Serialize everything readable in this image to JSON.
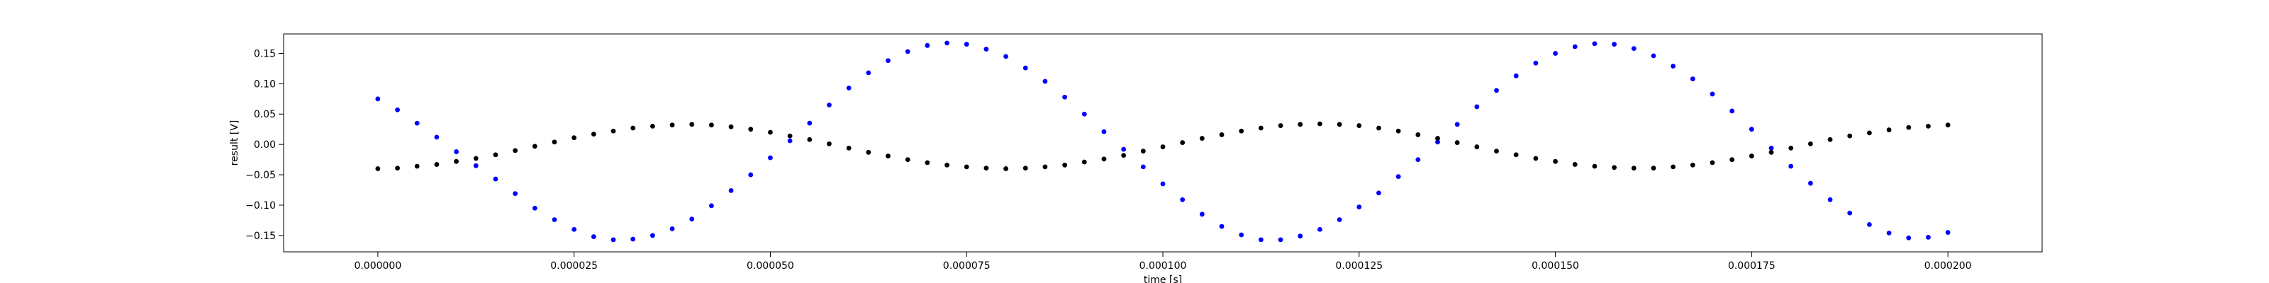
{
  "chart_data": {
    "type": "scatter",
    "title": "",
    "xlabel": "time [s]",
    "ylabel": "result [V]",
    "xlim": [
      -1.2e-05,
      0.000212
    ],
    "ylim": [
      -0.177,
      0.182
    ],
    "x_ticks": [
      0,
      2.5e-05,
      5e-05,
      7.5e-05,
      0.0001,
      0.000125,
      0.00015,
      0.000175,
      0.0002
    ],
    "x_tick_labels": [
      "0.000000",
      "0.000025",
      "0.000050",
      "0.000075",
      "0.000100",
      "0.000125",
      "0.000150",
      "0.000175",
      "0.000200"
    ],
    "y_ticks": [
      -0.15,
      -0.1,
      -0.05,
      0.0,
      0.05,
      0.1,
      0.15
    ],
    "y_tick_labels": [
      "−0.15",
      "−0.10",
      "−0.05",
      "0.00",
      "0.05",
      "0.10",
      "0.15"
    ],
    "grid": false,
    "legend": "none",
    "series": [
      {
        "color": "#0000ff",
        "marker": "dot",
        "x": [
          0,
          2.5e-06,
          5e-06,
          7.5e-06,
          1e-05,
          1.25e-05,
          1.5e-05,
          1.75e-05,
          2e-05,
          2.25e-05,
          2.5e-05,
          2.75e-05,
          3e-05,
          3.25e-05,
          3.5e-05,
          3.75e-05,
          4e-05,
          4.25e-05,
          4.5e-05,
          4.75e-05,
          5e-05,
          5.25e-05,
          5.5e-05,
          5.75e-05,
          6e-05,
          6.25e-05,
          6.5e-05,
          6.75e-05,
          7e-05,
          7.25e-05,
          7.5e-05,
          7.75e-05,
          8e-05,
          8.25e-05,
          8.5e-05,
          8.75e-05,
          9e-05,
          9.25e-05,
          9.5e-05,
          9.75e-05,
          0.0001,
          0.0001025,
          0.000105,
          0.0001075,
          0.00011,
          0.0001125,
          0.000115,
          0.0001175,
          0.00012,
          0.0001225,
          0.000125,
          0.0001275,
          0.00013,
          0.0001325,
          0.000135,
          0.0001375,
          0.00014,
          0.0001425,
          0.000145,
          0.0001475,
          0.00015,
          0.0001525,
          0.000155,
          0.0001575,
          0.00016,
          0.0001625,
          0.000165,
          0.0001675,
          0.00017,
          0.0001725,
          0.000175,
          0.0001775,
          0.00018,
          0.0001825,
          0.000185,
          0.0001875,
          0.00019,
          0.0001925,
          0.000195,
          0.0001975,
          0.0002
        ],
        "y": [
          0.075,
          0.057,
          0.035,
          0.012,
          -0.012,
          -0.035,
          -0.057,
          -0.081,
          -0.105,
          -0.124,
          -0.14,
          -0.152,
          -0.157,
          -0.156,
          -0.15,
          -0.139,
          -0.123,
          -0.101,
          -0.076,
          -0.05,
          -0.022,
          0.006,
          0.035,
          0.065,
          0.093,
          0.118,
          0.138,
          0.153,
          0.163,
          0.167,
          0.165,
          0.157,
          0.145,
          0.126,
          0.104,
          0.078,
          0.05,
          0.021,
          -0.008,
          -0.037,
          -0.065,
          -0.091,
          -0.115,
          -0.135,
          -0.149,
          -0.157,
          -0.157,
          -0.151,
          -0.14,
          -0.124,
          -0.103,
          -0.08,
          -0.053,
          -0.025,
          0.004,
          0.033,
          0.062,
          0.089,
          0.113,
          0.134,
          0.15,
          0.161,
          0.166,
          0.165,
          0.158,
          0.146,
          0.129,
          0.108,
          0.083,
          0.055,
          0.025,
          -0.006,
          -0.036,
          -0.064,
          -0.091,
          -0.113,
          -0.132,
          -0.146,
          -0.154,
          -0.153,
          -0.145
        ]
      },
      {
        "color": "#000000",
        "marker": "dot",
        "x": [
          0,
          2.5e-06,
          5e-06,
          7.5e-06,
          1e-05,
          1.25e-05,
          1.5e-05,
          1.75e-05,
          2e-05,
          2.25e-05,
          2.5e-05,
          2.75e-05,
          3e-05,
          3.25e-05,
          3.5e-05,
          3.75e-05,
          4e-05,
          4.25e-05,
          4.5e-05,
          4.75e-05,
          5e-05,
          5.25e-05,
          5.5e-05,
          5.75e-05,
          6e-05,
          6.25e-05,
          6.5e-05,
          6.75e-05,
          7e-05,
          7.25e-05,
          7.5e-05,
          7.75e-05,
          8e-05,
          8.25e-05,
          8.5e-05,
          8.75e-05,
          9e-05,
          9.25e-05,
          9.5e-05,
          9.75e-05,
          0.0001,
          0.0001025,
          0.000105,
          0.0001075,
          0.00011,
          0.0001125,
          0.000115,
          0.0001175,
          0.00012,
          0.0001225,
          0.000125,
          0.0001275,
          0.00013,
          0.0001325,
          0.000135,
          0.0001375,
          0.00014,
          0.0001425,
          0.000145,
          0.0001475,
          0.00015,
          0.0001525,
          0.000155,
          0.0001575,
          0.00016,
          0.0001625,
          0.000165,
          0.0001675,
          0.00017,
          0.0001725,
          0.000175,
          0.0001775,
          0.00018,
          0.0001825,
          0.000185,
          0.0001875,
          0.00019,
          0.0001925,
          0.000195,
          0.0001975,
          0.0002
        ],
        "y": [
          -0.04,
          -0.039,
          -0.036,
          -0.033,
          -0.028,
          -0.023,
          -0.017,
          -0.01,
          -0.003,
          0.004,
          0.011,
          0.017,
          0.022,
          0.027,
          0.03,
          0.032,
          0.033,
          0.032,
          0.029,
          0.025,
          0.02,
          0.014,
          0.008,
          0.001,
          -0.006,
          -0.013,
          -0.019,
          -0.025,
          -0.03,
          -0.034,
          -0.037,
          -0.039,
          -0.04,
          -0.039,
          -0.037,
          -0.034,
          -0.029,
          -0.024,
          -0.018,
          -0.011,
          -0.004,
          0.003,
          0.01,
          0.016,
          0.022,
          0.027,
          0.031,
          0.033,
          0.034,
          0.033,
          0.031,
          0.027,
          0.022,
          0.016,
          0.01,
          0.003,
          -0.004,
          -0.011,
          -0.017,
          -0.023,
          -0.028,
          -0.033,
          -0.036,
          -0.038,
          -0.039,
          -0.039,
          -0.037,
          -0.034,
          -0.03,
          -0.025,
          -0.019,
          -0.013,
          -0.006,
          0.001,
          0.008,
          0.014,
          0.019,
          0.024,
          0.028,
          0.03,
          0.032
        ]
      }
    ]
  }
}
